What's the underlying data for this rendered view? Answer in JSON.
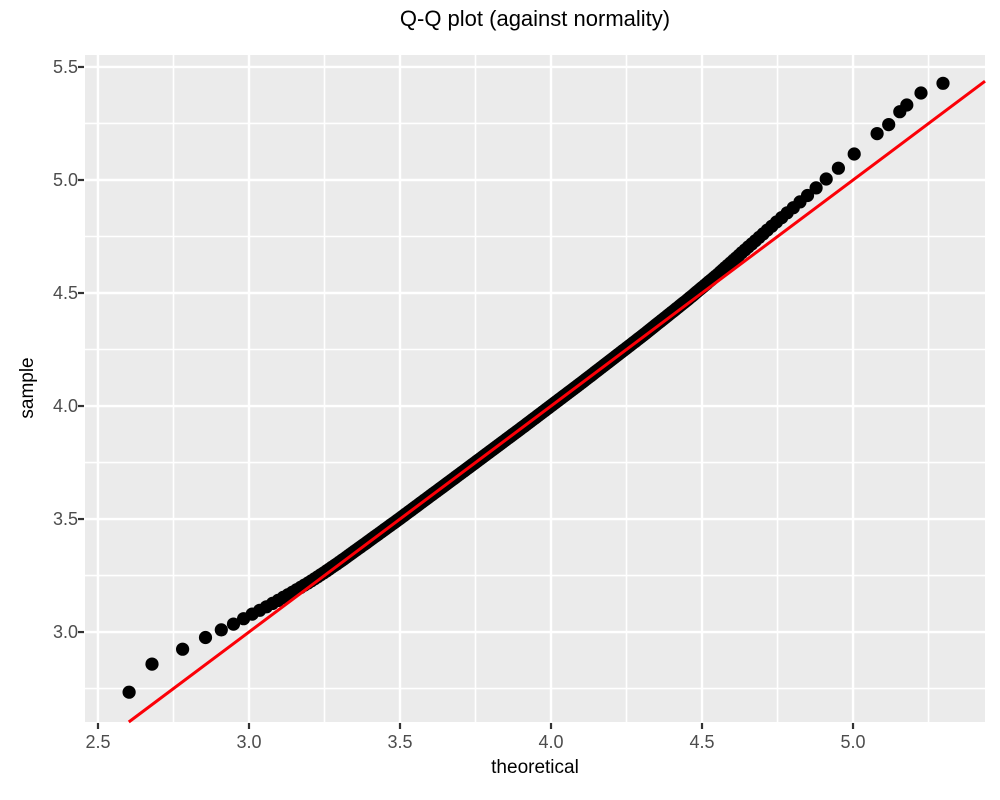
{
  "page": {
    "background": "#FFFFFF"
  },
  "chart_data": {
    "type": "scatter",
    "title": "Q-Q plot (against normality)",
    "xlabel": "theoretical",
    "ylabel": "sample",
    "x_tick_labels": [
      "2.5",
      "3.0",
      "3.5",
      "4.0",
      "4.5",
      "5.0"
    ],
    "x_tick_values": [
      2.5,
      3.0,
      3.5,
      4.0,
      4.5,
      5.0
    ],
    "y_tick_labels": [
      "3.0",
      "3.5",
      "4.0",
      "4.5",
      "5.0",
      "5.5"
    ],
    "y_tick_values": [
      3.0,
      3.5,
      4.0,
      4.5,
      5.0,
      5.5
    ],
    "x_minor_values": [
      2.75,
      3.25,
      3.75,
      4.25,
      4.75,
      5.25
    ],
    "y_minor_values": [
      2.75,
      3.25,
      3.75,
      4.25,
      4.75,
      5.25
    ],
    "x_range": [
      2.457,
      5.437
    ],
    "y_range": [
      2.602,
      5.553
    ],
    "grid": true,
    "legend": "none",
    "panel_bg": "#EBEBEB",
    "grid_color": "#FFFFFF",
    "tick_mark_color": "#333333",
    "tick_label_color": "#4D4D4D",
    "text_color": "#000000",
    "reference_line": {
      "type": "identity",
      "slope": 1,
      "intercept": 0,
      "color": "#FB0007",
      "width": 3
    },
    "points_style": {
      "color": "#000000",
      "radius": 6.6
    },
    "qq_band": {
      "n": 400,
      "mu": 3.93,
      "sigma": 0.43,
      "t_min": 2.705,
      "t_max": 5.115,
      "deviation_curve": [
        [
          2.705,
          0.178
        ],
        [
          2.75,
          0.15
        ],
        [
          2.8,
          0.14
        ],
        [
          2.85,
          0.122
        ],
        [
          2.9,
          0.104
        ],
        [
          2.95,
          0.086
        ],
        [
          3.0,
          0.072
        ],
        [
          3.05,
          0.056
        ],
        [
          3.1,
          0.043
        ],
        [
          3.15,
          0.031
        ],
        [
          3.2,
          0.021
        ],
        [
          3.25,
          0.014
        ],
        [
          3.3,
          0.01
        ],
        [
          3.4,
          0.006
        ],
        [
          3.5,
          0.003
        ],
        [
          3.7,
          0.001
        ],
        [
          3.9,
          0.0
        ],
        [
          4.1,
          0.002
        ],
        [
          4.3,
          0.008
        ],
        [
          4.45,
          0.018
        ],
        [
          4.55,
          0.03
        ],
        [
          4.65,
          0.05
        ],
        [
          4.75,
          0.068
        ],
        [
          4.85,
          0.082
        ],
        [
          4.95,
          0.1
        ],
        [
          5.05,
          0.12
        ],
        [
          5.115,
          0.132
        ]
      ]
    },
    "extra_points": [
      [
        2.603,
        2.734
      ],
      [
        2.679,
        2.858
      ],
      [
        5.118,
        5.245
      ],
      [
        5.155,
        5.302
      ],
      [
        5.178,
        5.332
      ],
      [
        5.225,
        5.385
      ],
      [
        5.298,
        5.428
      ]
    ]
  }
}
